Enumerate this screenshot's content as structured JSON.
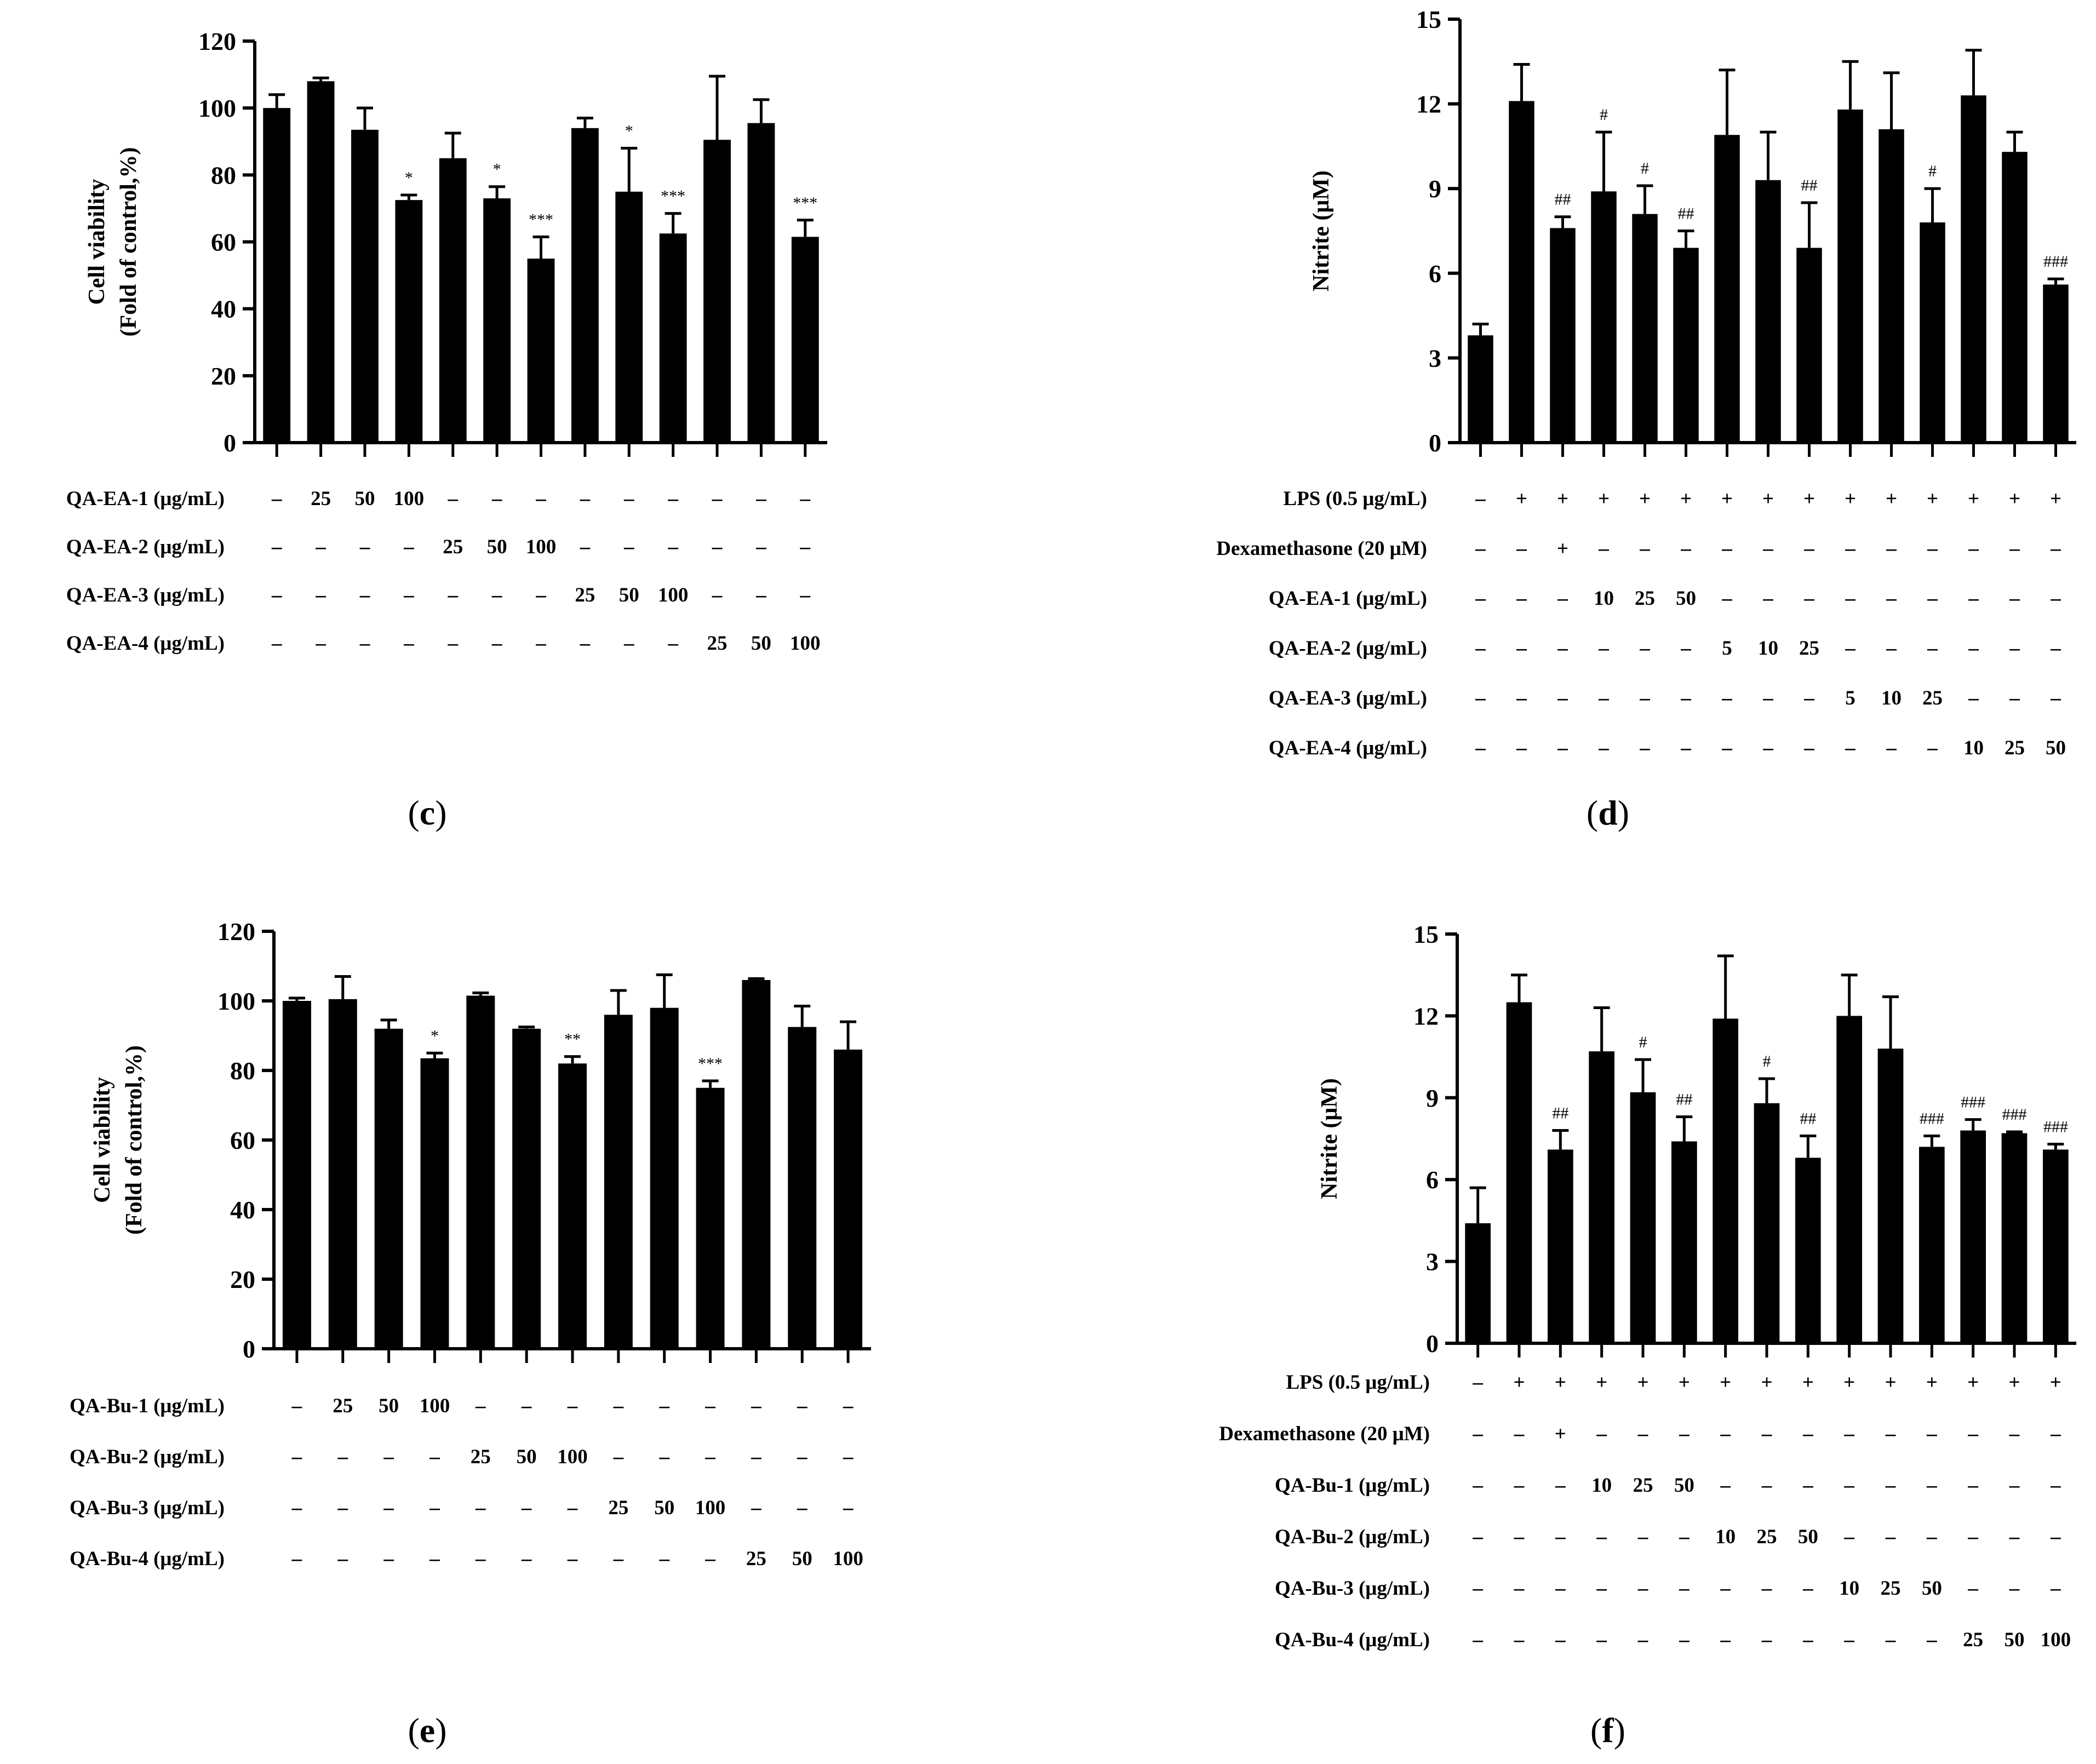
{
  "chart_data": [
    {
      "panel": "c",
      "type": "bar",
      "ylabel_lines": [
        "Cell viability",
        "(Fold of control,%)"
      ],
      "ylim": [
        0,
        120
      ],
      "yticks": [
        0,
        20,
        40,
        60,
        80,
        100,
        120
      ],
      "values": [
        100,
        108,
        93.5,
        72.5,
        85,
        73,
        55,
        94,
        75,
        62.5,
        90.5,
        95.5,
        61.5
      ],
      "errors": [
        4,
        1,
        6.5,
        1.5,
        7.5,
        3.5,
        6.5,
        3,
        13,
        6,
        19,
        7,
        5
      ],
      "significance": [
        "",
        "",
        "",
        "*",
        "",
        "*",
        "***",
        "",
        "*",
        "***",
        "",
        "",
        "***"
      ],
      "rows": [
        {
          "label": "QA-EA-1 (μg/mL)",
          "cells": [
            "–",
            "25",
            "50",
            "100",
            "–",
            "–",
            "–",
            "–",
            "–",
            "–",
            "–",
            "–",
            "–"
          ]
        },
        {
          "label": "QA-EA-2 (μg/mL)",
          "cells": [
            "–",
            "–",
            "–",
            "–",
            "25",
            "50",
            "100",
            "–",
            "–",
            "–",
            "–",
            "–",
            "–"
          ]
        },
        {
          "label": "QA-EA-3 (μg/mL)",
          "cells": [
            "–",
            "–",
            "–",
            "–",
            "–",
            "–",
            "–",
            "25",
            "50",
            "100",
            "–",
            "–",
            "–"
          ]
        },
        {
          "label": "QA-EA-4 (μg/mL)",
          "cells": [
            "–",
            "–",
            "–",
            "–",
            "–",
            "–",
            "–",
            "–",
            "–",
            "–",
            "25",
            "50",
            "100"
          ]
        }
      ]
    },
    {
      "panel": "d",
      "type": "bar",
      "ylabel_lines": [
        "Nitrite (μM)"
      ],
      "ylim": [
        0,
        15
      ],
      "yticks": [
        0,
        3,
        6,
        9,
        12,
        15
      ],
      "values": [
        3.8,
        12.1,
        7.6,
        8.9,
        8.1,
        6.9,
        10.9,
        9.3,
        6.9,
        11.8,
        11.1,
        7.8,
        12.3,
        10.3,
        5.6
      ],
      "errors": [
        0.4,
        1.3,
        0.4,
        2.1,
        1.0,
        0.6,
        2.3,
        1.7,
        1.6,
        1.7,
        2.0,
        1.2,
        1.6,
        0.7,
        0.2
      ],
      "significance": [
        "",
        "",
        "##",
        "#",
        "#",
        "##",
        "",
        "",
        "##",
        "",
        "",
        "#",
        "",
        "",
        "###"
      ],
      "rows": [
        {
          "label": "LPS (0.5 μg/mL)",
          "cells": [
            "–",
            "+",
            "+",
            "+",
            "+",
            "+",
            "+",
            "+",
            "+",
            "+",
            "+",
            "+",
            "+",
            "+",
            "+"
          ]
        },
        {
          "label": "Dexamethasone (20 μM)",
          "cells": [
            "–",
            "–",
            "+",
            "–",
            "–",
            "–",
            "–",
            "–",
            "–",
            "–",
            "–",
            "–",
            "–",
            "–",
            "–"
          ]
        },
        {
          "label": "QA-EA-1 (μg/mL)",
          "cells": [
            "–",
            "–",
            "–",
            "10",
            "25",
            "50",
            "–",
            "–",
            "–",
            "–",
            "–",
            "–",
            "–",
            "–",
            "–"
          ]
        },
        {
          "label": "QA-EA-2 (μg/mL)",
          "cells": [
            "–",
            "–",
            "–",
            "–",
            "–",
            "–",
            "5",
            "10",
            "25",
            "–",
            "–",
            "–",
            "–",
            "–",
            "–"
          ]
        },
        {
          "label": "QA-EA-3 (μg/mL)",
          "cells": [
            "–",
            "–",
            "–",
            "–",
            "–",
            "–",
            "–",
            "–",
            "–",
            "5",
            "10",
            "25",
            "–",
            "–",
            "–"
          ]
        },
        {
          "label": "QA-EA-4 (μg/mL)",
          "cells": [
            "–",
            "–",
            "–",
            "–",
            "–",
            "–",
            "–",
            "–",
            "–",
            "–",
            "–",
            "–",
            "10",
            "25",
            "50"
          ]
        }
      ]
    },
    {
      "panel": "e",
      "type": "bar",
      "ylabel_lines": [
        "Cell viability",
        "(Fold of control,%)"
      ],
      "ylim": [
        0,
        120
      ],
      "yticks": [
        0,
        20,
        40,
        60,
        80,
        100,
        120
      ],
      "values": [
        100,
        100.5,
        92,
        83.5,
        101.5,
        92,
        82,
        96,
        98,
        75,
        106,
        92.5,
        86
      ],
      "errors": [
        0.8,
        6.5,
        2.5,
        1.5,
        0.8,
        0.5,
        2,
        7,
        9.5,
        2,
        0.4,
        6,
        8
      ],
      "significance": [
        "",
        "",
        "",
        "*",
        "",
        "",
        "**",
        "",
        "",
        "***",
        "",
        "",
        ""
      ],
      "rows": [
        {
          "label": "QA-Bu-1 (μg/mL)",
          "cells": [
            "–",
            "25",
            "50",
            "100",
            "–",
            "–",
            "–",
            "–",
            "–",
            "–",
            "–",
            "–",
            "–"
          ]
        },
        {
          "label": "QA-Bu-2 (μg/mL)",
          "cells": [
            "–",
            "–",
            "–",
            "–",
            "25",
            "50",
            "100",
            "–",
            "–",
            "–",
            "–",
            "–",
            "–"
          ]
        },
        {
          "label": "QA-Bu-3 (μg/mL)",
          "cells": [
            "–",
            "–",
            "–",
            "–",
            "–",
            "–",
            "–",
            "25",
            "50",
            "100",
            "–",
            "–",
            "–"
          ]
        },
        {
          "label": "QA-Bu-4 (μg/mL)",
          "cells": [
            "–",
            "–",
            "–",
            "–",
            "–",
            "–",
            "–",
            "–",
            "–",
            "–",
            "25",
            "50",
            "100"
          ]
        }
      ]
    },
    {
      "panel": "f",
      "type": "bar",
      "ylabel_lines": [
        "Nitrite (μM)"
      ],
      "ylim": [
        0,
        15
      ],
      "yticks": [
        0,
        3,
        6,
        9,
        12,
        15
      ],
      "values": [
        4.4,
        12.5,
        7.1,
        10.7,
        9.2,
        7.4,
        11.9,
        8.8,
        6.8,
        12.0,
        10.8,
        7.2,
        7.8,
        7.7,
        7.1
      ],
      "errors": [
        1.3,
        1.0,
        0.7,
        1.6,
        1.2,
        0.9,
        2.3,
        0.9,
        0.8,
        1.5,
        1.9,
        0.4,
        0.4,
        0.05,
        0.2
      ],
      "significance": [
        "",
        "",
        "##",
        "",
        "#",
        "##",
        "",
        "#",
        "##",
        "",
        "",
        "###",
        "###",
        "###",
        "###"
      ],
      "rows": [
        {
          "label": "LPS (0.5 μg/mL)",
          "cells": [
            "–",
            "+",
            "+",
            "+",
            "+",
            "+",
            "+",
            "+",
            "+",
            "+",
            "+",
            "+",
            "+",
            "+",
            "+"
          ]
        },
        {
          "label": "Dexamethasone (20 μM)",
          "cells": [
            "–",
            "–",
            "+",
            "–",
            "–",
            "–",
            "–",
            "–",
            "–",
            "–",
            "–",
            "–",
            "–",
            "–",
            "–"
          ]
        },
        {
          "label": "QA-Bu-1 (μg/mL)",
          "cells": [
            "–",
            "–",
            "–",
            "10",
            "25",
            "50",
            "–",
            "–",
            "–",
            "–",
            "–",
            "–",
            "–",
            "–",
            "–"
          ]
        },
        {
          "label": "QA-Bu-2 (μg/mL)",
          "cells": [
            "–",
            "–",
            "–",
            "–",
            "–",
            "–",
            "10",
            "25",
            "50",
            "–",
            "–",
            "–",
            "–",
            "–",
            "–"
          ]
        },
        {
          "label": "QA-Bu-3 (μg/mL)",
          "cells": [
            "–",
            "–",
            "–",
            "–",
            "–",
            "–",
            "–",
            "–",
            "–",
            "10",
            "25",
            "50",
            "–",
            "–",
            "–"
          ]
        },
        {
          "label": "QA-Bu-4 (μg/mL)",
          "cells": [
            "–",
            "–",
            "–",
            "–",
            "–",
            "–",
            "–",
            "–",
            "–",
            "–",
            "–",
            "–",
            "25",
            "50",
            "100"
          ]
        }
      ]
    }
  ]
}
